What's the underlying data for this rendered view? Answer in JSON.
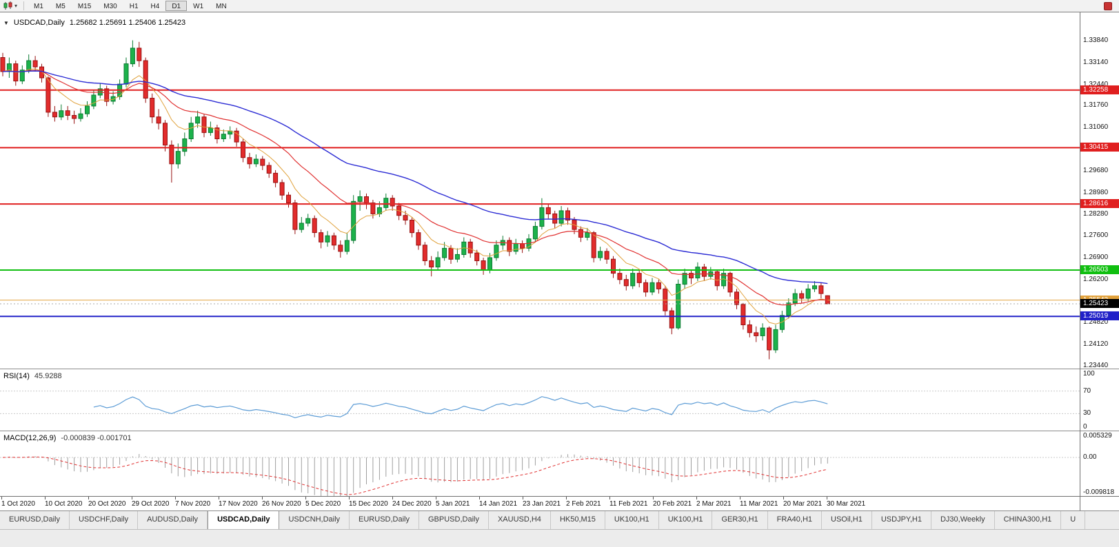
{
  "toolbar": {
    "timeframes": [
      "M1",
      "M5",
      "M15",
      "M30",
      "H1",
      "H4",
      "D1",
      "W1",
      "MN"
    ],
    "active_timeframe": "D1"
  },
  "chart": {
    "symbol_label": "USDCAD,Daily",
    "ohlc": "1.25682 1.25691 1.25406 1.25423",
    "price_axis_labels": [
      "1.33840",
      "1.33140",
      "1.32440",
      "1.31760",
      "1.31060",
      "1.30380",
      "1.29680",
      "1.28980",
      "1.28280",
      "1.27600",
      "1.26900",
      "1.26200",
      "1.24820",
      "1.24120",
      "1.23440"
    ],
    "levels": [
      {
        "value": 1.32258,
        "label": "1.32258",
        "color": "#e01f1f",
        "line_width": 2
      },
      {
        "value": 1.30415,
        "label": "1.30415",
        "color": "#e01f1f",
        "line_width": 2
      },
      {
        "value": 1.28616,
        "label": "1.28616",
        "color": "#e01f1f",
        "line_width": 2
      },
      {
        "value": 1.26503,
        "label": "1.26503",
        "color": "#10bf10",
        "line_width": 2
      },
      {
        "value": 1.25543,
        "label": "1.25543",
        "color": "#e2a23c",
        "line_width": 1
      },
      {
        "value": 1.25019,
        "label": "1.25019",
        "color": "#2121c8",
        "line_width": 2
      }
    ],
    "current_price": {
      "value": 1.25423,
      "label": "1.25423",
      "box_color": "#000000",
      "line_color": "#aaaaaa"
    }
  },
  "chart_data": {
    "type": "candlestick",
    "symbol": "USDCAD",
    "timeframe": "Daily",
    "x_labels": [
      "1 Oct 2020",
      "10 Oct 2020",
      "20 Oct 2020",
      "29 Oct 2020",
      "7 Nov 2020",
      "17 Nov 2020",
      "26 Nov 2020",
      "5 Dec 2020",
      "15 Dec 2020",
      "24 Dec 2020",
      "5 Jan 2021",
      "14 Jan 2021",
      "23 Jan 2021",
      "2 Feb 2021",
      "11 Feb 2021",
      "20 Feb 2021",
      "2 Mar 2021",
      "11 Mar 2021",
      "20 Mar 2021",
      "30 Mar 2021"
    ],
    "y_axis": {
      "top_value": 1.3384,
      "bottom_value": 1.2344
    },
    "colors": {
      "up": "#1cb24b",
      "up_border": "#0a7a30",
      "down": "#e22c2c",
      "down_border": "#971111",
      "background": "#ffffff"
    },
    "moving_averages": [
      {
        "name": "ma-fast",
        "period": 8,
        "color": "#e0a23c",
        "width": 1
      },
      {
        "name": "ma-medium",
        "period": 20,
        "color": "#e03030",
        "width": 1.2
      },
      {
        "name": "ma-slow",
        "period": 45,
        "color": "#2b2bd4",
        "width": 1.4
      }
    ],
    "candles": [
      [
        1.333,
        1.3345,
        1.327,
        1.3285
      ],
      [
        1.3285,
        1.333,
        1.3265,
        1.331
      ],
      [
        1.331,
        1.332,
        1.324,
        1.3255
      ],
      [
        1.3255,
        1.3305,
        1.3245,
        1.329
      ],
      [
        1.329,
        1.334,
        1.328,
        1.332
      ],
      [
        1.332,
        1.3335,
        1.3285,
        1.33
      ],
      [
        1.33,
        1.331,
        1.325,
        1.3265
      ],
      [
        1.3265,
        1.327,
        1.314,
        1.3155
      ],
      [
        1.3155,
        1.3175,
        1.3125,
        1.314
      ],
      [
        1.314,
        1.318,
        1.313,
        1.316
      ],
      [
        1.316,
        1.3175,
        1.313,
        1.3145
      ],
      [
        1.3145,
        1.316,
        1.3118,
        1.3135
      ],
      [
        1.3135,
        1.3168,
        1.3125,
        1.315
      ],
      [
        1.315,
        1.319,
        1.314,
        1.3175
      ],
      [
        1.3175,
        1.3225,
        1.3165,
        1.321
      ],
      [
        1.321,
        1.3248,
        1.32,
        1.323
      ],
      [
        1.323,
        1.324,
        1.3175,
        1.319
      ],
      [
        1.319,
        1.3222,
        1.318,
        1.3205
      ],
      [
        1.3205,
        1.326,
        1.3195,
        1.3245
      ],
      [
        1.3245,
        1.333,
        1.3235,
        1.331
      ],
      [
        1.331,
        1.3385,
        1.33,
        1.336
      ],
      [
        1.336,
        1.338,
        1.33,
        1.332
      ],
      [
        1.332,
        1.333,
        1.3185,
        1.32
      ],
      [
        1.32,
        1.3215,
        1.312,
        1.314
      ],
      [
        1.314,
        1.3165,
        1.31,
        1.312
      ],
      [
        1.312,
        1.313,
        1.303,
        1.305
      ],
      [
        1.305,
        1.3065,
        1.293,
        1.299
      ],
      [
        1.299,
        1.3055,
        1.2975,
        1.303
      ],
      [
        1.303,
        1.309,
        1.3015,
        1.307
      ],
      [
        1.307,
        1.314,
        1.306,
        1.312
      ],
      [
        1.312,
        1.316,
        1.3105,
        1.314
      ],
      [
        1.314,
        1.315,
        1.3075,
        1.309
      ],
      [
        1.309,
        1.3125,
        1.308,
        1.3105
      ],
      [
        1.3105,
        1.3115,
        1.3055,
        1.307
      ],
      [
        1.307,
        1.31,
        1.306,
        1.3085
      ],
      [
        1.3085,
        1.311,
        1.307,
        1.3095
      ],
      [
        1.3095,
        1.3105,
        1.3045,
        1.306
      ],
      [
        1.306,
        1.307,
        1.2995,
        1.301
      ],
      [
        1.301,
        1.3025,
        1.2975,
        1.299
      ],
      [
        1.299,
        1.302,
        1.298,
        1.3005
      ],
      [
        1.3005,
        1.3015,
        1.297,
        1.2985
      ],
      [
        1.2985,
        1.2995,
        1.2945,
        1.296
      ],
      [
        1.296,
        1.297,
        1.2915,
        1.293
      ],
      [
        1.293,
        1.294,
        1.2875,
        1.289
      ],
      [
        1.289,
        1.29,
        1.285,
        1.2865
      ],
      [
        1.2865,
        1.2875,
        1.2765,
        1.278
      ],
      [
        1.278,
        1.282,
        1.277,
        1.28
      ],
      [
        1.28,
        1.283,
        1.279,
        1.2815
      ],
      [
        1.2815,
        1.2825,
        1.2755,
        1.277
      ],
      [
        1.277,
        1.278,
        1.272,
        1.274
      ],
      [
        1.274,
        1.2775,
        1.2725,
        1.276
      ],
      [
        1.276,
        1.277,
        1.2715,
        1.273
      ],
      [
        1.273,
        1.2745,
        1.269,
        1.271
      ],
      [
        1.271,
        1.277,
        1.27,
        1.2745
      ],
      [
        1.2745,
        1.289,
        1.2735,
        1.287
      ],
      [
        1.287,
        1.2905,
        1.284,
        1.2885
      ],
      [
        1.2885,
        1.2895,
        1.2845,
        1.2865
      ],
      [
        1.2865,
        1.2875,
        1.2815,
        1.283
      ],
      [
        1.283,
        1.287,
        1.282,
        1.285
      ],
      [
        1.285,
        1.2895,
        1.284,
        1.288
      ],
      [
        1.288,
        1.289,
        1.284,
        1.2855
      ],
      [
        1.2855,
        1.2865,
        1.281,
        1.2825
      ],
      [
        1.2825,
        1.284,
        1.2795,
        1.281
      ],
      [
        1.281,
        1.282,
        1.2755,
        1.277
      ],
      [
        1.277,
        1.278,
        1.2715,
        1.273
      ],
      [
        1.273,
        1.274,
        1.2665,
        1.268
      ],
      [
        1.268,
        1.2695,
        1.263,
        1.266
      ],
      [
        1.266,
        1.271,
        1.265,
        1.269
      ],
      [
        1.269,
        1.274,
        1.268,
        1.272
      ],
      [
        1.272,
        1.273,
        1.267,
        1.2685
      ],
      [
        1.2685,
        1.272,
        1.2675,
        1.27
      ],
      [
        1.27,
        1.2755,
        1.269,
        1.274
      ],
      [
        1.274,
        1.275,
        1.269,
        1.2705
      ],
      [
        1.2705,
        1.2715,
        1.2665,
        1.268
      ],
      [
        1.268,
        1.269,
        1.2635,
        1.265
      ],
      [
        1.265,
        1.2705,
        1.264,
        1.269
      ],
      [
        1.269,
        1.2745,
        1.268,
        1.273
      ],
      [
        1.273,
        1.276,
        1.2715,
        1.2745
      ],
      [
        1.2745,
        1.2755,
        1.2695,
        1.271
      ],
      [
        1.271,
        1.275,
        1.27,
        1.2735
      ],
      [
        1.2735,
        1.2745,
        1.2705,
        1.272
      ],
      [
        1.272,
        1.2765,
        1.271,
        1.275
      ],
      [
        1.275,
        1.2805,
        1.274,
        1.279
      ],
      [
        1.279,
        1.288,
        1.278,
        1.285
      ],
      [
        1.285,
        1.286,
        1.2815,
        1.283
      ],
      [
        1.283,
        1.284,
        1.2785,
        1.28
      ],
      [
        1.28,
        1.2855,
        1.279,
        1.284
      ],
      [
        1.284,
        1.285,
        1.2795,
        1.281
      ],
      [
        1.281,
        1.282,
        1.2765,
        1.278
      ],
      [
        1.278,
        1.279,
        1.274,
        1.2755
      ],
      [
        1.2755,
        1.2785,
        1.2745,
        1.277
      ],
      [
        1.277,
        1.2775,
        1.2675,
        1.269
      ],
      [
        1.269,
        1.2725,
        1.268,
        1.271
      ],
      [
        1.271,
        1.272,
        1.267,
        1.2685
      ],
      [
        1.2685,
        1.2695,
        1.2625,
        1.264
      ],
      [
        1.264,
        1.2655,
        1.2605,
        1.262
      ],
      [
        1.262,
        1.2635,
        1.2585,
        1.26
      ],
      [
        1.26,
        1.2655,
        1.259,
        1.264
      ],
      [
        1.264,
        1.265,
        1.2595,
        1.261
      ],
      [
        1.261,
        1.262,
        1.2565,
        1.258
      ],
      [
        1.258,
        1.2625,
        1.257,
        1.261
      ],
      [
        1.261,
        1.262,
        1.2575,
        1.259
      ],
      [
        1.259,
        1.26,
        1.2505,
        1.252
      ],
      [
        1.252,
        1.253,
        1.2445,
        1.2465
      ],
      [
        1.2465,
        1.262,
        1.246,
        1.2605
      ],
      [
        1.2605,
        1.2655,
        1.259,
        1.264
      ],
      [
        1.264,
        1.265,
        1.2605,
        1.2625
      ],
      [
        1.2625,
        1.2675,
        1.2615,
        1.266
      ],
      [
        1.266,
        1.267,
        1.2615,
        1.263
      ],
      [
        1.263,
        1.266,
        1.262,
        1.2645
      ],
      [
        1.2645,
        1.265,
        1.2585,
        1.26
      ],
      [
        1.26,
        1.2655,
        1.259,
        1.264
      ],
      [
        1.264,
        1.2645,
        1.2565,
        1.258
      ],
      [
        1.258,
        1.259,
        1.2525,
        1.254
      ],
      [
        1.254,
        1.2545,
        1.246,
        1.2475
      ],
      [
        1.2475,
        1.249,
        1.2435,
        1.245
      ],
      [
        1.245,
        1.247,
        1.242,
        1.244
      ],
      [
        1.244,
        1.248,
        1.2425,
        1.2465
      ],
      [
        1.2465,
        1.247,
        1.2365,
        1.2395
      ],
      [
        1.2395,
        1.2475,
        1.2385,
        1.246
      ],
      [
        1.246,
        1.252,
        1.245,
        1.2505
      ],
      [
        1.2505,
        1.256,
        1.2495,
        1.2545
      ],
      [
        1.2545,
        1.259,
        1.2535,
        1.2575
      ],
      [
        1.2575,
        1.2585,
        1.2545,
        1.256
      ],
      [
        1.256,
        1.2605,
        1.255,
        1.259
      ],
      [
        1.259,
        1.2615,
        1.258,
        1.26
      ],
      [
        1.26,
        1.261,
        1.256,
        1.2575
      ],
      [
        1.25682,
        1.25691,
        1.25406,
        1.25423
      ]
    ]
  },
  "rsi": {
    "label": "RSI(14)",
    "value": "45.9288",
    "levels": [
      "100",
      "70",
      "30",
      "0"
    ],
    "line_color": "#5b9bd5"
  },
  "macd": {
    "label": "MACD(12,26,9)",
    "values": "-0.000839 -0.001701",
    "scale": [
      "0.005329",
      "0.00",
      "-0.009818"
    ],
    "histogram_color": "#9e9e9e",
    "signal_color": "#e03030"
  },
  "tabs": {
    "items": [
      "EURUSD,Daily",
      "USDCHF,Daily",
      "AUDUSD,Daily",
      "USDCAD,Daily",
      "USDCNH,Daily",
      "EURUSD,Daily",
      "GBPUSD,Daily",
      "XAUUSD,H4",
      "HK50,M15",
      "UK100,H1",
      "UK100,H1",
      "GER30,H1",
      "FRA40,H1",
      "USOil,H1",
      "USDJPY,H1",
      "DJ30,Weekly",
      "CHINA300,H1",
      "U"
    ],
    "active_index": 3
  }
}
